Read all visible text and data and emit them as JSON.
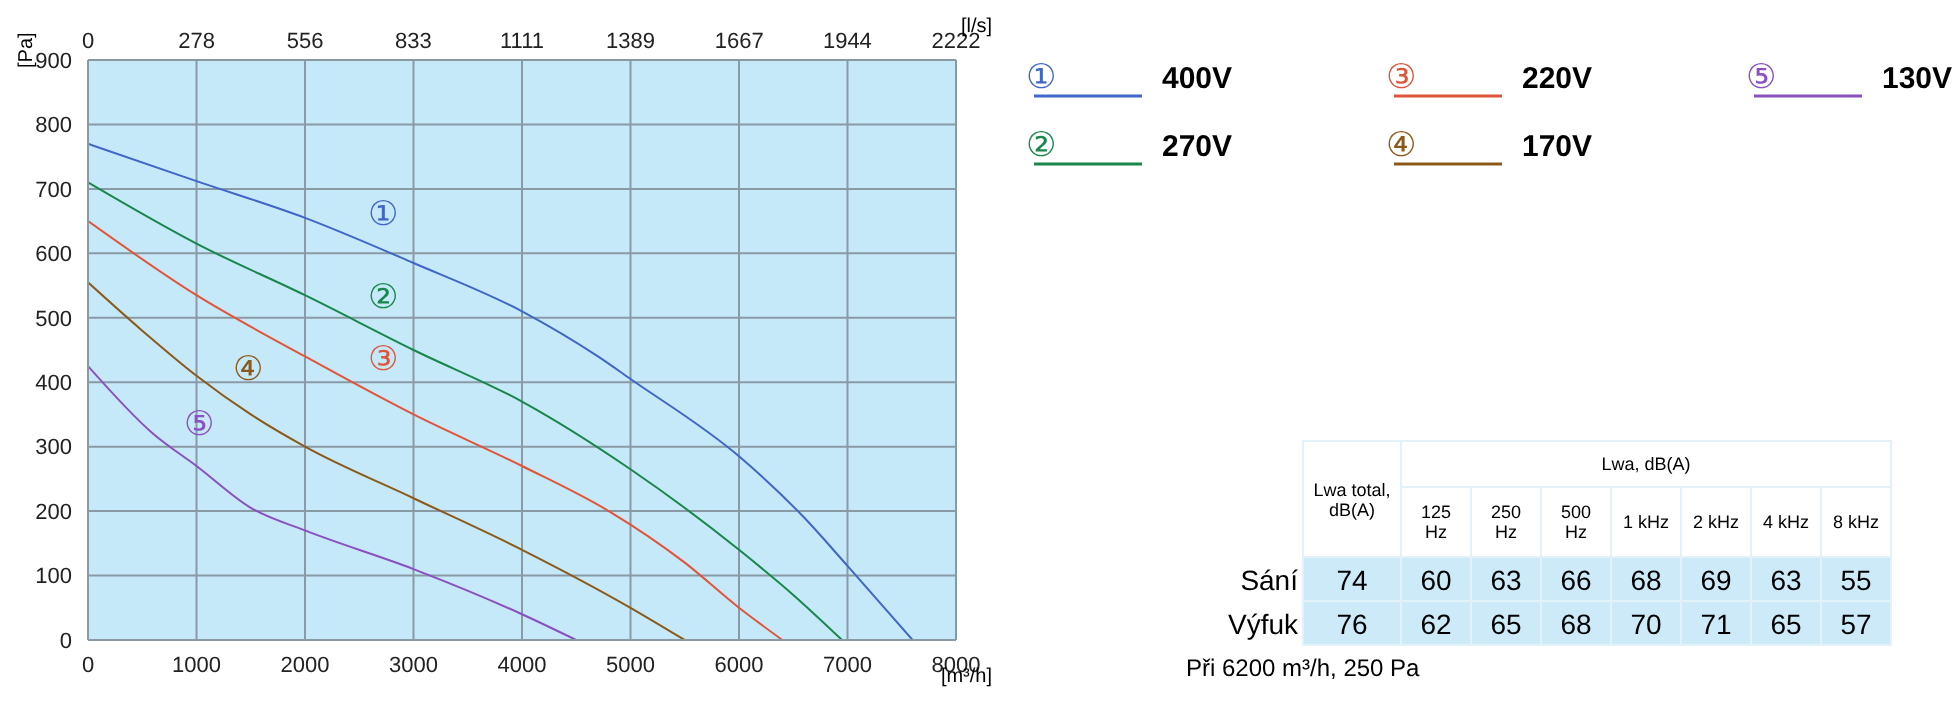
{
  "chart_data": [
    {
      "type": "line",
      "xlabel": "[m³/h]",
      "ylabel": "[Pa]",
      "x2label": "[l/s]",
      "xlim": [
        0,
        8000
      ],
      "xticks": [
        0,
        1000,
        2000,
        3000,
        4000,
        5000,
        6000,
        7000,
        8000
      ],
      "x2lim": [
        0,
        2222
      ],
      "x2ticks": [
        0,
        278,
        556,
        833,
        1111,
        1389,
        1667,
        1944,
        2222
      ],
      "ylim": [
        0,
        900
      ],
      "yticks": [
        0,
        100,
        200,
        300,
        400,
        500,
        600,
        700,
        800,
        900
      ],
      "grid": true,
      "legend": "top right",
      "marker": "none",
      "line_style": "solid",
      "series": [
        {
          "name": "400V",
          "color": "#3f66c8",
          "x": [
            0,
            1000,
            2000,
            3000,
            4000,
            4700,
            5000,
            6000,
            6600,
            7000,
            7600
          ],
          "values": [
            770,
            712,
            655,
            585,
            510,
            440,
            405,
            285,
            190,
            115,
            0
          ]
        },
        {
          "name": "270V",
          "color": "#17874a",
          "x": [
            0,
            1000,
            2000,
            3000,
            4000,
            5000,
            6000,
            6500,
            6950
          ],
          "values": [
            710,
            615,
            535,
            450,
            370,
            265,
            140,
            70,
            0
          ]
        },
        {
          "name": "220V",
          "color": "#e0553a",
          "x": [
            0,
            1000,
            2000,
            3000,
            4000,
            4800,
            5500,
            6000,
            6400
          ],
          "values": [
            650,
            535,
            440,
            350,
            270,
            200,
            120,
            50,
            0
          ]
        },
        {
          "name": "170V",
          "color": "#8b5a1a",
          "x": [
            0,
            500,
            1000,
            1500,
            2000,
            3000,
            4000,
            5000,
            5500
          ],
          "values": [
            555,
            480,
            410,
            350,
            300,
            220,
            140,
            50,
            0
          ]
        },
        {
          "name": "130V",
          "color": "#8a4fc0",
          "x": [
            0,
            600,
            1000,
            1500,
            2000,
            3000,
            4000,
            4500
          ],
          "values": [
            425,
            320,
            270,
            205,
            170,
            110,
            40,
            0
          ]
        }
      ],
      "annotations": [
        "①",
        "②",
        "③",
        "④",
        "⑤"
      ]
    },
    {
      "type": "other",
      "xlabel": "Lwa, dB(A)",
      "categories": [
        "Lwa total, dB(A)",
        "125 Hz",
        "250 Hz",
        "500 Hz",
        "1 kHz",
        "2 kHz",
        "4 kHz",
        "8 kHz"
      ],
      "data_labels": true,
      "series": [
        {
          "name": "Sání",
          "color": "#cdeaf9",
          "values": [
            74,
            60,
            63,
            66,
            68,
            69,
            63,
            55
          ]
        },
        {
          "name": "Výfuk",
          "color": "#cdeaf9",
          "values": [
            76,
            62,
            65,
            68,
            70,
            71,
            65,
            57
          ]
        }
      ],
      "annotations": [
        "Při 6200 m³/h, 250 Pa"
      ]
    }
  ]
}
